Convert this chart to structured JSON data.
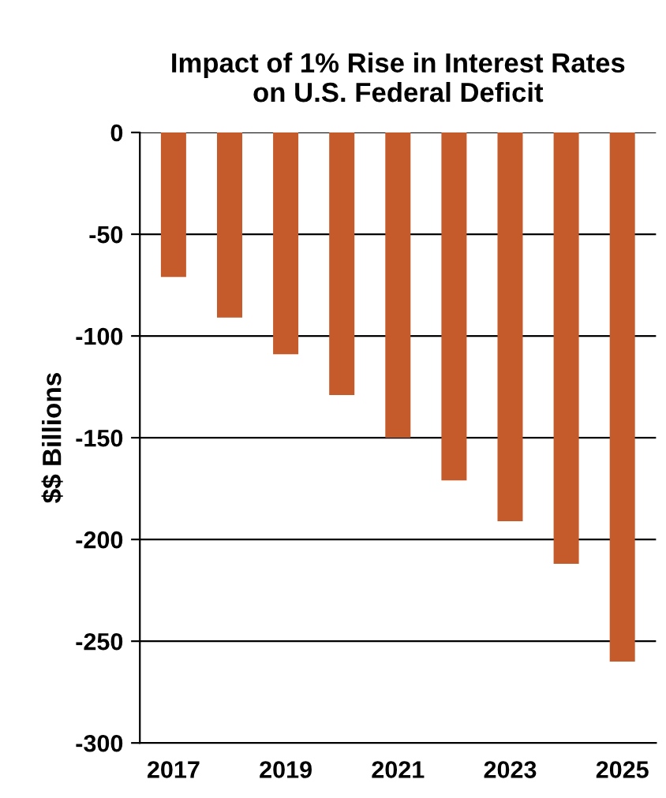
{
  "chart_data": {
    "type": "bar",
    "title": "Impact of 1% Rise in Interest Rates\non U.S. Federal Deficit",
    "ylabel": "$$ Billions",
    "categories": [
      "2017",
      null,
      "2019",
      null,
      "2021",
      null,
      "2023",
      null,
      "2025"
    ],
    "values": [
      -71,
      -91,
      -109,
      -129,
      -150,
      -171,
      -191,
      -212,
      -260
    ],
    "color": "#c55a2b",
    "ylim": [
      -300,
      0
    ],
    "yticks": [
      -300,
      -250,
      -200,
      -150,
      -100,
      -50,
      0
    ],
    "grid": "y",
    "legend": false
  }
}
